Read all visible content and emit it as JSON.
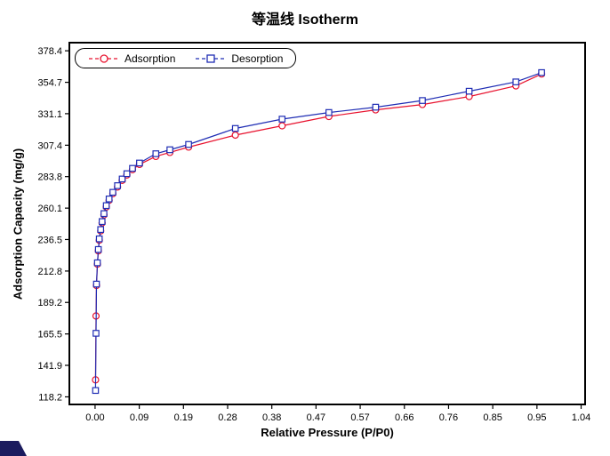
{
  "chart_data": {
    "type": "line",
    "title": "等温线 Isotherm",
    "xlabel": "Relative Pressure (P/P0)",
    "ylabel": "Adsorption Capacity (mg/g)",
    "xlim": [
      -0.055,
      1.048
    ],
    "ylim": [
      112.5,
      384.5
    ],
    "grid": false,
    "legend_position": "top-left",
    "frame_color": "#000000",
    "x_ticks": {
      "positions": [
        0,
        0.0945,
        0.189,
        0.2835,
        0.378,
        0.4725,
        0.567,
        0.6615,
        0.756,
        0.8505,
        0.945,
        1.0395
      ],
      "labels": [
        "0.00",
        "0.09",
        "0.19",
        "0.28",
        "0.38",
        "0.47",
        "0.57",
        "0.66",
        "0.76",
        "0.85",
        "0.95",
        "1.04"
      ]
    },
    "y_ticks": {
      "positions": [
        118.2,
        141.9,
        165.5,
        189.2,
        212.8,
        236.5,
        260.1,
        283.8,
        307.4,
        331.1,
        354.7,
        378.4
      ],
      "labels": [
        "118.2",
        "141.9",
        "165.5",
        "189.2",
        "212.8",
        "236.5",
        "260.1",
        "283.8",
        "307.4",
        "331.1",
        "354.7",
        "378.4"
      ]
    },
    "series": [
      {
        "name": "Adsorption",
        "color": "#e8112d",
        "marker": "circle",
        "x": [
          0.001,
          0.002,
          0.003,
          0.005,
          0.007,
          0.009,
          0.012,
          0.015,
          0.019,
          0.024,
          0.03,
          0.038,
          0.048,
          0.058,
          0.068,
          0.08,
          0.095,
          0.13,
          0.16,
          0.2,
          0.3,
          0.4,
          0.5,
          0.6,
          0.7,
          0.8,
          0.9,
          0.955
        ],
        "y": [
          131,
          179,
          202,
          218,
          228,
          236,
          243,
          249,
          255,
          261,
          266,
          271,
          276,
          281,
          285,
          289,
          293,
          299,
          302,
          306,
          315,
          322,
          329,
          334,
          338,
          344,
          352,
          361
        ]
      },
      {
        "name": "Desorption",
        "color": "#1f2db4",
        "marker": "square",
        "x": [
          0.001,
          0.002,
          0.003,
          0.005,
          0.007,
          0.009,
          0.012,
          0.015,
          0.019,
          0.024,
          0.03,
          0.038,
          0.048,
          0.058,
          0.068,
          0.08,
          0.095,
          0.13,
          0.16,
          0.2,
          0.3,
          0.4,
          0.5,
          0.6,
          0.7,
          0.8,
          0.9,
          0.955
        ],
        "y": [
          123,
          166,
          203,
          219,
          229,
          237,
          244,
          250,
          256,
          262,
          267,
          272,
          277,
          282,
          286,
          290,
          294,
          301,
          304,
          308,
          320,
          327,
          332,
          336,
          341,
          348,
          355,
          362
        ]
      }
    ]
  }
}
